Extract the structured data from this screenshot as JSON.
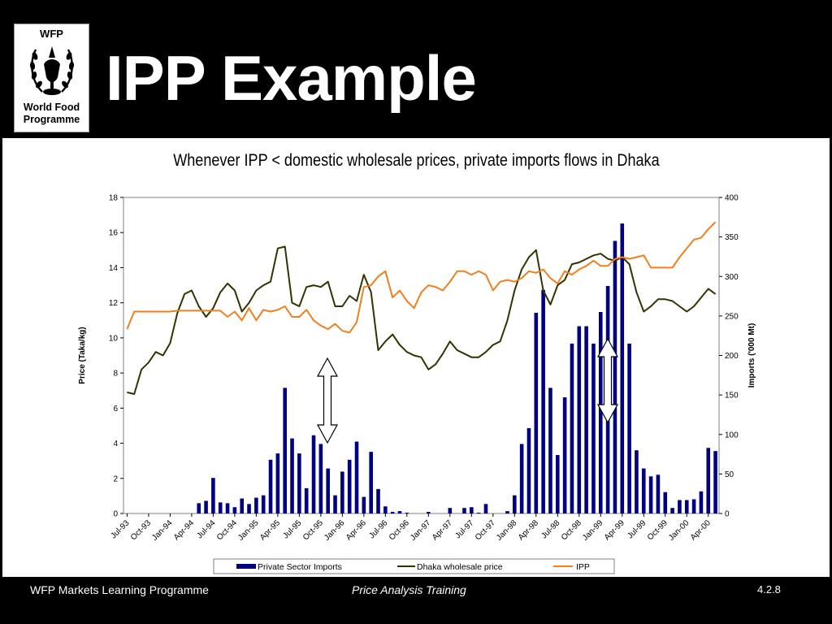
{
  "slide": {
    "title": "IPP Example",
    "subtitle": "Whenever IPP < domestic wholesale prices, private imports flows in Dhaka"
  },
  "logo": {
    "abbreviation": "WFP",
    "name_line1": "World Food",
    "name_line2": "Programme"
  },
  "footer": {
    "left": "WFP Markets Learning Programme",
    "center": "Price Analysis Training",
    "right": "4.2.8"
  },
  "colors": {
    "background": "#000000",
    "panel": "#ffffff",
    "imports_bar": "#000080",
    "dhaka_line": "#333300",
    "ipp_line": "#f07f1e",
    "gridline": "#808080"
  },
  "icons": [
    "wfp-emblem-icon",
    "double-arrow-icon"
  ],
  "chart_data": {
    "type": "bar",
    "title": "",
    "x_tick_labels": [
      "Jul-93",
      "Oct-93",
      "Jan-94",
      "Apr-94",
      "Jul-94",
      "Oct-94",
      "Jan-95",
      "Apr-95",
      "Jul-95",
      "Oct-95",
      "Jan-96",
      "Apr-96",
      "Jul-96",
      "Oct-96",
      "Jan-97",
      "Apr-97",
      "Jul-97",
      "Oct-97",
      "Jan-98",
      "Apr-98",
      "Jul-98",
      "Oct-98",
      "Jan-99",
      "Apr-99",
      "Jul-99",
      "Oct-99",
      "Jan-00",
      "Apr-00"
    ],
    "ylabel_left": "Price (Taka/kg)",
    "ylabel_right": "Imports ('000 Mt)",
    "ylim_left": [
      0,
      18
    ],
    "ylim_right": [
      0,
      400
    ],
    "yticks_left": [
      0,
      2,
      4,
      6,
      8,
      10,
      12,
      14,
      16,
      18
    ],
    "yticks_right": [
      0,
      50,
      100,
      150,
      200,
      250,
      300,
      350,
      400
    ],
    "grid": false,
    "legend_position": "bottom",
    "start_month": "Jul-93",
    "series": [
      {
        "name": "Private Sector Imports",
        "type": "bar",
        "axis": "right",
        "values": [
          0,
          0,
          0,
          0,
          0,
          0,
          0,
          0,
          0,
          0,
          13,
          16,
          45,
          14,
          13,
          8,
          19,
          12,
          20,
          23,
          68,
          76,
          159,
          95,
          76,
          32,
          99,
          88,
          57,
          23,
          53,
          68,
          91,
          21,
          78,
          31,
          9,
          2,
          3,
          1,
          0,
          0,
          2,
          0,
          0,
          7,
          0,
          7,
          8,
          1,
          12,
          0,
          0,
          3,
          23,
          88,
          108,
          254,
          283,
          159,
          74,
          147,
          215,
          237,
          237,
          215,
          255,
          288,
          345,
          367,
          215,
          80,
          57,
          47,
          49,
          27,
          7,
          17,
          17,
          18,
          28,
          83,
          79
        ]
      },
      {
        "name": "Dhaka wholesale price",
        "type": "line",
        "axis": "left",
        "values": [
          6.9,
          6.8,
          8.2,
          8.6,
          9.2,
          9.0,
          9.7,
          11.4,
          12.5,
          12.7,
          11.8,
          11.2,
          11.7,
          12.6,
          13.1,
          12.7,
          11.5,
          12.0,
          12.7,
          13.0,
          13.2,
          15.1,
          15.2,
          12.0,
          11.8,
          12.9,
          13.0,
          12.9,
          13.2,
          11.8,
          11.8,
          12.4,
          12.1,
          13.6,
          12.6,
          9.3,
          9.8,
          10.2,
          9.6,
          9.2,
          9.0,
          8.9,
          8.2,
          8.5,
          9.1,
          9.8,
          9.3,
          9.1,
          8.9,
          8.9,
          9.2,
          9.6,
          9.8,
          11.0,
          12.7,
          13.9,
          14.6,
          15.0,
          12.7,
          11.9,
          13.0,
          13.3,
          14.2,
          14.3,
          14.5,
          14.7,
          14.8,
          14.5,
          14.4,
          14.6,
          14.2,
          12.6,
          11.5,
          11.8,
          12.2,
          12.2,
          12.1,
          11.8,
          11.5,
          11.8,
          12.3,
          12.8,
          12.5
        ]
      },
      {
        "name": "IPP",
        "type": "line",
        "axis": "left",
        "values": [
          10.5,
          11.5,
          11.5,
          11.5,
          11.5,
          11.5,
          11.5,
          11.55,
          11.55,
          11.55,
          11.55,
          11.55,
          11.55,
          11.55,
          11.2,
          11.5,
          11.0,
          11.7,
          11.0,
          11.6,
          11.5,
          11.6,
          11.8,
          11.2,
          11.2,
          11.6,
          11.0,
          10.7,
          10.5,
          10.8,
          10.4,
          10.3,
          10.9,
          12.9,
          13.0,
          13.5,
          13.8,
          12.3,
          12.7,
          12.1,
          11.7,
          12.6,
          13.0,
          12.9,
          12.7,
          13.2,
          13.8,
          13.8,
          13.6,
          13.8,
          13.6,
          12.7,
          13.2,
          13.3,
          13.2,
          13.4,
          13.8,
          13.7,
          13.9,
          13.4,
          13.1,
          13.8,
          13.6,
          13.9,
          14.1,
          14.4,
          14.1,
          14.1,
          14.5,
          14.6,
          14.5,
          14.6,
          14.7,
          14.0,
          14.0,
          14.0,
          14.0,
          14.6,
          15.1,
          15.6,
          15.7,
          16.2,
          16.6
        ]
      }
    ]
  }
}
